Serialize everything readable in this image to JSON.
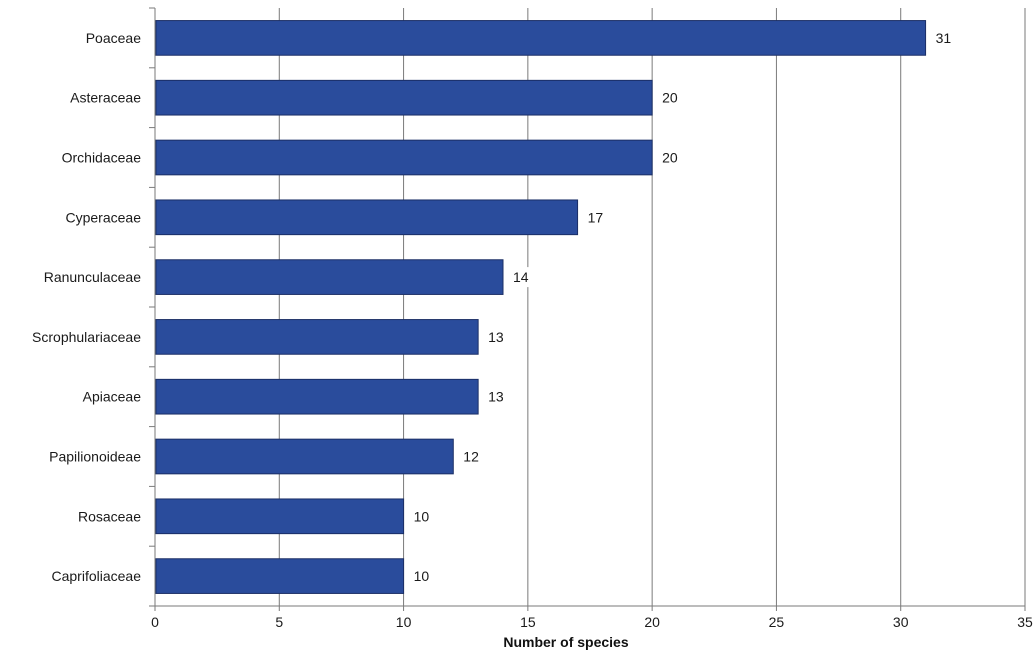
{
  "chart_data": {
    "type": "bar",
    "orientation": "horizontal",
    "categories": [
      "Poaceae",
      "Asteraceae",
      "Orchidaceae",
      "Cyperaceae",
      "Ranunculaceae",
      "Scrophulariaceae",
      "Apiaceae",
      "Papilionoideae",
      "Rosaceae",
      "Caprifoliaceae"
    ],
    "values": [
      31,
      20,
      20,
      17,
      14,
      13,
      13,
      12,
      10,
      10
    ],
    "xlabel": "Number of species",
    "ylabel": "",
    "xlim": [
      0,
      35
    ],
    "xticks": [
      0,
      5,
      10,
      15,
      20,
      25,
      30,
      35
    ],
    "grid": "vertical",
    "legend": "none",
    "bar_color": "#2a4c9c",
    "bar_edge_color": "#1b2f66"
  }
}
